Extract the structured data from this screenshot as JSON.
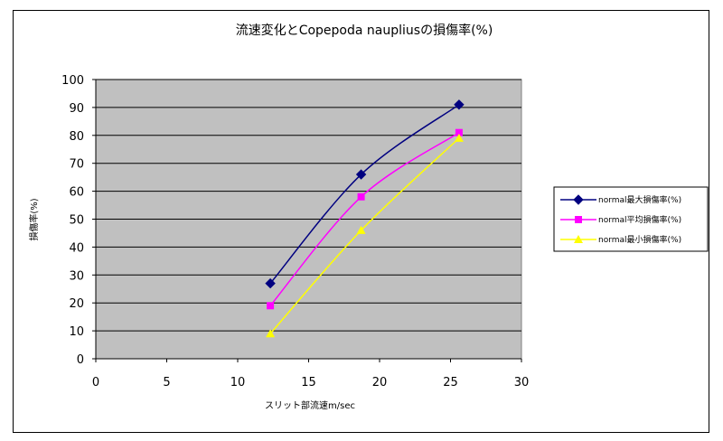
{
  "chart_data": {
    "type": "scatter",
    "title": "流速変化とCopepoda naupliusの損傷率(%)",
    "xlabel": "スリット部流速m/sec",
    "ylabel": "損傷率(%)",
    "xlim": [
      0,
      30
    ],
    "ylim": [
      0,
      100
    ],
    "xticks": [
      0,
      5,
      10,
      15,
      20,
      25,
      30
    ],
    "yticks": [
      0,
      10,
      20,
      30,
      40,
      50,
      60,
      70,
      80,
      90,
      100
    ],
    "grid": true,
    "legend_position": "right",
    "plot_background": "#c0c0c0",
    "series": [
      {
        "name": "normal最大損傷率(%)",
        "color": "#000080",
        "marker": "diamond",
        "x": [
          12.3,
          18.7,
          25.6
        ],
        "y": [
          27,
          66,
          91
        ]
      },
      {
        "name": "normal平均損傷率(%)",
        "color": "#ff00ff",
        "marker": "square",
        "x": [
          12.3,
          18.7,
          25.6
        ],
        "y": [
          19,
          58,
          81
        ]
      },
      {
        "name": "normal最小損傷率(%)",
        "color": "#ffff00",
        "marker": "triangle",
        "x": [
          12.3,
          18.7,
          25.6
        ],
        "y": [
          9,
          46,
          79
        ]
      }
    ]
  }
}
